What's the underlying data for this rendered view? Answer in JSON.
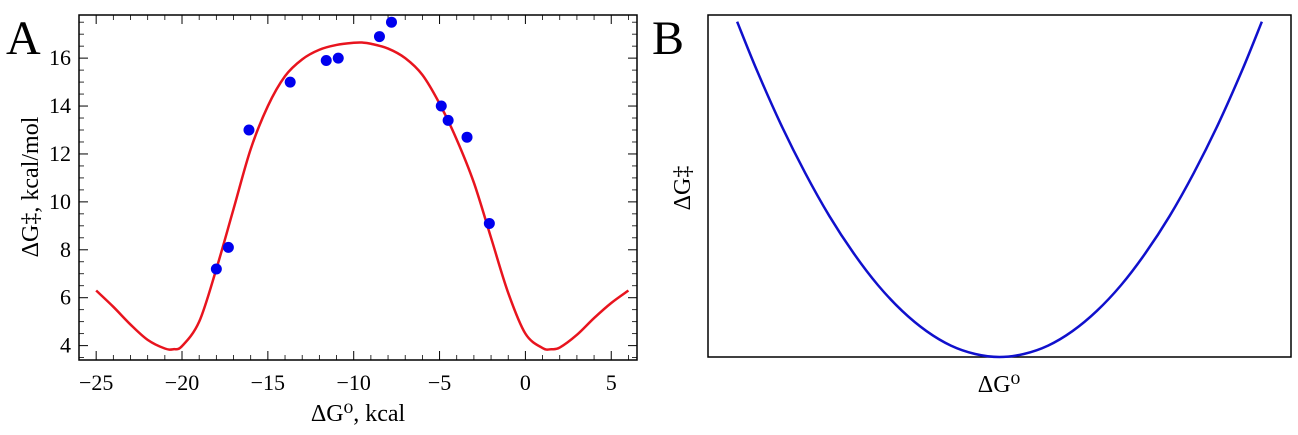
{
  "chart_data": [
    {
      "panel_label": "A",
      "type": "scatter",
      "xlabel": "ΔG⁰, kcal",
      "ylabel": "ΔG‡, kcal/mol",
      "xlim": [
        -26,
        6.5
      ],
      "ylim": [
        3.4,
        17.8
      ],
      "x_ticks": [
        -25,
        -20,
        -15,
        -10,
        -5,
        0,
        5
      ],
      "x_tick_labels": [
        "−25",
        "−20",
        "−15",
        "−10",
        "−5",
        "0",
        "5"
      ],
      "y_ticks": [
        4,
        6,
        8,
        10,
        12,
        14,
        16
      ],
      "y_tick_labels": [
        "4",
        "6",
        "8",
        "10",
        "12",
        "14",
        "16"
      ],
      "grid": false,
      "series": [
        {
          "kind": "points",
          "color": "#0000ee",
          "points": [
            [
              -18.0,
              7.2
            ],
            [
              -17.3,
              8.1
            ],
            [
              -16.1,
              13.0
            ],
            [
              -13.7,
              15.0
            ],
            [
              -11.6,
              15.9
            ],
            [
              -10.9,
              16.0
            ],
            [
              -8.5,
              16.9
            ],
            [
              -7.8,
              17.5
            ],
            [
              -4.9,
              14.0
            ],
            [
              -4.5,
              13.4
            ],
            [
              -3.4,
              12.7
            ],
            [
              -2.1,
              9.1
            ]
          ]
        },
        {
          "kind": "line",
          "color": "#e8141e",
          "points": [
            [
              -25,
              6.3
            ],
            [
              -24,
              5.62
            ],
            [
              -23,
              4.88
            ],
            [
              -22,
              4.24
            ],
            [
              -21,
              3.88
            ],
            [
              -20.5,
              3.85
            ],
            [
              -20,
              3.98
            ],
            [
              -19,
              5.0
            ],
            [
              -18,
              7.2
            ],
            [
              -17,
              9.7
            ],
            [
              -16,
              12.2
            ],
            [
              -15,
              14.0
            ],
            [
              -14,
              15.25
            ],
            [
              -13,
              15.95
            ],
            [
              -12,
              16.35
            ],
            [
              -11,
              16.55
            ],
            [
              -10,
              16.64
            ],
            [
              -9.5,
              16.65
            ],
            [
              -9,
              16.6
            ],
            [
              -8,
              16.4
            ],
            [
              -7,
              16.0
            ],
            [
              -6,
              15.3
            ],
            [
              -5,
              14.1
            ],
            [
              -4,
              12.6
            ],
            [
              -3,
              10.8
            ],
            [
              -2,
              8.5
            ],
            [
              -1,
              6.2
            ],
            [
              0,
              4.5
            ],
            [
              1,
              3.9
            ],
            [
              1.5,
              3.85
            ],
            [
              2,
              3.92
            ],
            [
              3,
              4.45
            ],
            [
              4,
              5.15
            ],
            [
              5,
              5.78
            ],
            [
              6,
              6.3
            ]
          ]
        }
      ]
    },
    {
      "panel_label": "B",
      "type": "line",
      "xlabel": "ΔG⁰",
      "ylabel": "ΔG‡",
      "xlim": [
        -1.2,
        1.2
      ],
      "ylim": [
        0,
        1.02
      ],
      "x_ticks": [],
      "y_ticks": [],
      "grid": false,
      "series": [
        {
          "kind": "line",
          "color": "#1010cc",
          "points": [
            [
              -1.08,
              1.0
            ],
            [
              -1.0,
              0.857
            ],
            [
              -0.9,
              0.694
            ],
            [
              -0.8,
              0.549
            ],
            [
              -0.7,
              0.42
            ],
            [
              -0.6,
              0.309
            ],
            [
              -0.5,
              0.214
            ],
            [
              -0.4,
              0.137
            ],
            [
              -0.3,
              0.077
            ],
            [
              -0.2,
              0.034
            ],
            [
              -0.1,
              0.009
            ],
            [
              0,
              0.0
            ],
            [
              0.1,
              0.009
            ],
            [
              0.2,
              0.034
            ],
            [
              0.3,
              0.077
            ],
            [
              0.4,
              0.137
            ],
            [
              0.5,
              0.214
            ],
            [
              0.6,
              0.309
            ],
            [
              0.7,
              0.42
            ],
            [
              0.8,
              0.549
            ],
            [
              0.9,
              0.694
            ],
            [
              1.0,
              0.857
            ],
            [
              1.08,
              1.0
            ]
          ]
        }
      ]
    }
  ]
}
